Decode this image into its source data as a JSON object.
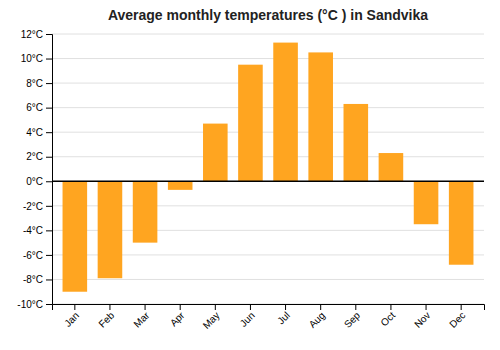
{
  "chart_data": {
    "type": "bar",
    "title": "Average monthly temperatures (°C ) in Sandvika",
    "categories": [
      "Jan",
      "Feb",
      "Mar",
      "Apr",
      "May",
      "Jun",
      "Jul",
      "Aug",
      "Sep",
      "Oct",
      "Nov",
      "Dec"
    ],
    "values": [
      -9.0,
      -7.9,
      -5.0,
      -0.7,
      4.7,
      9.5,
      11.3,
      10.5,
      6.3,
      2.3,
      -3.5,
      -6.8
    ],
    "color": "#FFA520",
    "ylim": [
      -10,
      12
    ],
    "yticks": [
      {
        "value": -10,
        "label": "-10°C"
      },
      {
        "value": -8,
        "label": "-8°C"
      },
      {
        "value": -6,
        "label": "-6°C"
      },
      {
        "value": -4,
        "label": "-4°C"
      },
      {
        "value": -2,
        "label": "-2°C"
      },
      {
        "value": 0,
        "label": "0°C"
      },
      {
        "value": 2,
        "label": "2°C"
      },
      {
        "value": 4,
        "label": "4°C"
      },
      {
        "value": 6,
        "label": "6°C"
      },
      {
        "value": 8,
        "label": "8°C"
      },
      {
        "value": 10,
        "label": "10°C"
      },
      {
        "value": 12,
        "label": "12°C"
      }
    ],
    "grid": true
  }
}
